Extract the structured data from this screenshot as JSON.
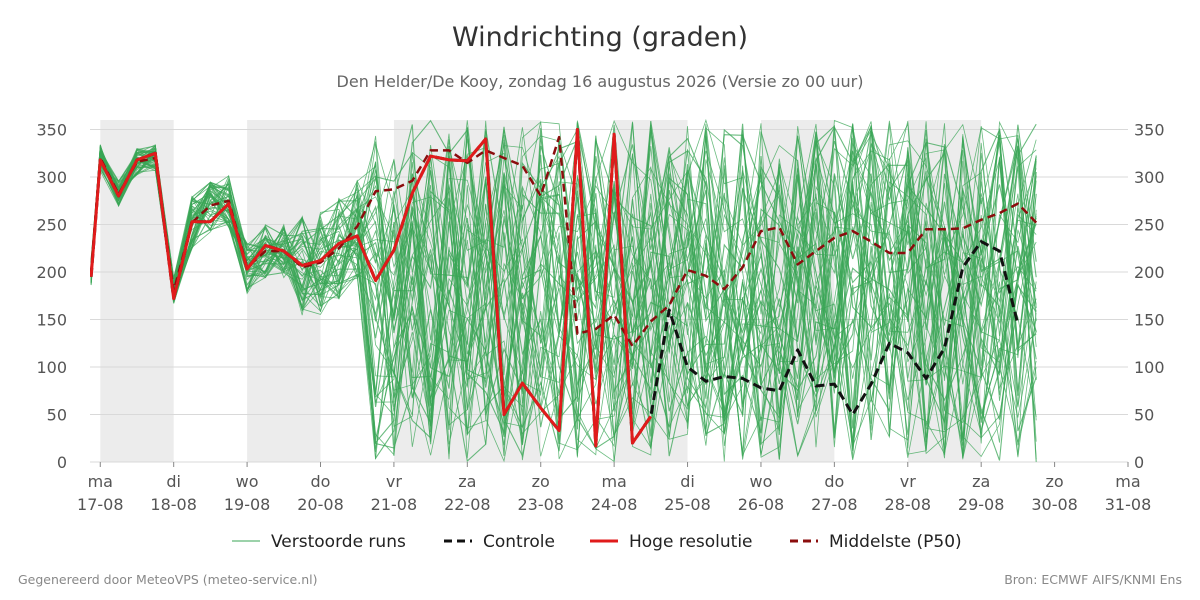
{
  "title": "Windrichting (graden)",
  "subtitle": "Den Helder/De Kooy, zondag 16 augustus 2026 (Versie zo 00 uur)",
  "footer_left": "Gegenereerd door MeteoVPS (meteo-service.nl)",
  "footer_right": "Bron: ECMWF AIFS/KNMI Ens",
  "chart_data": {
    "type": "line",
    "x_unit": "days since 16-08-2026 00:00",
    "xlim": [
      0.86,
      15.0
    ],
    "ylim": [
      0,
      360
    ],
    "yticks": [
      0,
      50,
      100,
      150,
      200,
      250,
      300,
      350
    ],
    "grid": true,
    "legend_position": "bottom",
    "x_ticks": [
      {
        "day": "ma",
        "date": "17-08"
      },
      {
        "day": "di",
        "date": "18-08"
      },
      {
        "day": "wo",
        "date": "19-08"
      },
      {
        "day": "do",
        "date": "20-08"
      },
      {
        "day": "vr",
        "date": "21-08"
      },
      {
        "day": "za",
        "date": "22-08"
      },
      {
        "day": "zo",
        "date": "23-08"
      },
      {
        "day": "ma",
        "date": "24-08"
      },
      {
        "day": "di",
        "date": "25-08"
      },
      {
        "day": "wo",
        "date": "26-08"
      },
      {
        "day": "do",
        "date": "27-08"
      },
      {
        "day": "vr",
        "date": "28-08"
      },
      {
        "day": "za",
        "date": "29-08"
      },
      {
        "day": "zo",
        "date": "30-08"
      },
      {
        "day": "ma",
        "date": "31-08"
      }
    ],
    "shaded_days": [
      1,
      3,
      5,
      6,
      8,
      10,
      12
    ],
    "legend": [
      {
        "label": "Verstoorde runs",
        "color": "#3aa655",
        "style": "thin"
      },
      {
        "label": "Controle",
        "color": "#111111",
        "style": "dashed"
      },
      {
        "label": "Hoge resolutie",
        "color": "#e01b1b",
        "style": "solid"
      },
      {
        "label": "Middelste (P50)",
        "color": "#8b0d0d",
        "style": "dashed"
      }
    ],
    "ensemble_count": 50,
    "ensemble_color": "#3aa655",
    "series": [
      {
        "name": "Hoge resolutie",
        "color": "#e01b1b",
        "x": [
          0.875,
          1.0,
          1.25,
          1.5,
          1.75,
          2.0,
          2.25,
          2.5,
          2.75,
          3.0,
          3.25,
          3.5,
          3.75,
          4.0,
          4.25,
          4.5,
          4.75,
          5.0,
          5.25,
          5.5,
          5.75,
          6.0,
          6.25,
          6.5,
          6.75,
          7.0,
          7.25,
          7.5,
          7.75,
          8.0,
          8.25,
          8.5,
          8.75,
          9.0,
          9.25,
          9.5,
          9.75
        ],
        "y": [
          195,
          318,
          280,
          318,
          325,
          172,
          253,
          253,
          272,
          203,
          228,
          222,
          207,
          212,
          230,
          238,
          191,
          223,
          283,
          322,
          318,
          317,
          340,
          50,
          83,
          57,
          33,
          350,
          17,
          345,
          20,
          48,
          null,
          null,
          null,
          null,
          null
        ]
      },
      {
        "name": "Controle",
        "color": "#111111",
        "x": [
          0.875,
          1.0,
          1.25,
          1.5,
          1.75,
          2.0,
          2.25,
          2.5,
          2.75,
          3.0,
          3.25,
          3.5,
          3.75,
          4.0,
          4.25,
          4.5,
          4.75,
          5.0,
          5.25,
          5.5,
          5.75,
          6.0,
          6.25,
          6.5,
          6.75,
          7.0,
          7.25,
          7.5,
          7.75,
          8.0,
          8.25,
          8.5,
          8.75,
          9.0,
          9.25,
          9.5,
          9.75,
          10.0,
          10.25,
          10.5,
          10.75,
          11.0,
          11.25,
          11.5,
          11.75,
          12.0,
          12.25,
          12.5,
          12.75,
          13.0,
          13.25,
          13.5,
          13.75,
          14.0,
          14.25,
          14.5,
          14.75,
          15.0
        ],
        "y": [
          195,
          318,
          280,
          318,
          325,
          172,
          253,
          253,
          272,
          203,
          228,
          222,
          207,
          212,
          230,
          238,
          191,
          223,
          283,
          322,
          318,
          317,
          340,
          50,
          83,
          57,
          33,
          350,
          17,
          345,
          20,
          48,
          160,
          100,
          85,
          90,
          88,
          78,
          75,
          118,
          80,
          82,
          50,
          82,
          125,
          115,
          88,
          120,
          205,
          232,
          222,
          145,
          null,
          null,
          null,
          null,
          null,
          null
        ]
      },
      {
        "name": "Middelste (P50)",
        "color": "#8b0d0d",
        "x": [
          0.875,
          1.0,
          1.25,
          1.5,
          1.75,
          2.0,
          2.25,
          2.5,
          2.75,
          3.0,
          3.25,
          3.5,
          3.75,
          4.0,
          4.25,
          4.5,
          4.75,
          5.0,
          5.25,
          5.5,
          5.75,
          6.0,
          6.25,
          6.5,
          6.75,
          7.0,
          7.25,
          7.5,
          7.75,
          8.0,
          8.25,
          8.5,
          8.75,
          9.0,
          9.25,
          9.5,
          9.75,
          10.0,
          10.25,
          10.5,
          10.75,
          11.0,
          11.25,
          11.5,
          11.75,
          12.0,
          12.25,
          12.5,
          12.75,
          13.0,
          13.25,
          13.5,
          13.75,
          14.0,
          14.25,
          14.5,
          14.75,
          15.0
        ],
        "y": [
          200,
          320,
          282,
          316,
          320,
          180,
          252,
          270,
          275,
          205,
          222,
          222,
          205,
          210,
          225,
          248,
          285,
          287,
          296,
          328,
          328,
          315,
          328,
          320,
          312,
          280,
          342,
          135,
          140,
          155,
          122,
          148,
          165,
          202,
          196,
          182,
          205,
          243,
          247,
          208,
          222,
          236,
          243,
          232,
          220,
          220,
          245,
          245,
          246,
          255,
          262,
          272,
          252,
          null,
          null,
          null,
          null,
          null
        ]
      }
    ]
  }
}
